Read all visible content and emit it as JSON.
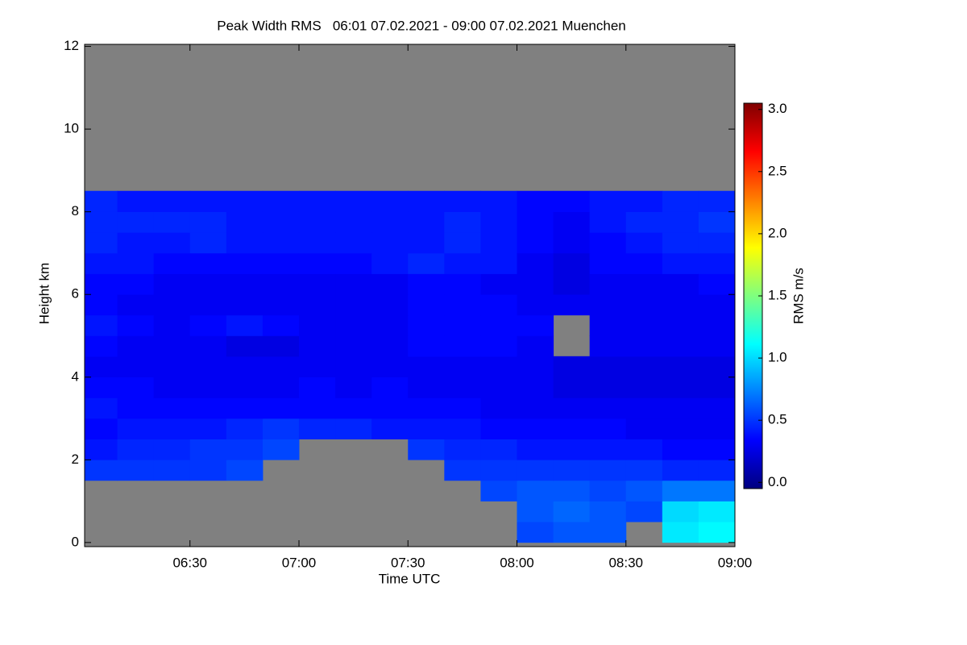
{
  "chart_data": {
    "type": "heatmap",
    "title": "Peak Width RMS   06:01 07.02.2021 - 09:00 07.02.2021 Muenchen",
    "x_label": "Time UTC",
    "y_label": "Height km",
    "colorbar_label": "RMS m/s",
    "xlim": [
      361,
      540
    ],
    "xticks": [
      {
        "value": 390,
        "label": "06:30"
      },
      {
        "value": 420,
        "label": "07:00"
      },
      {
        "value": 450,
        "label": "07:30"
      },
      {
        "value": 480,
        "label": "08:00"
      },
      {
        "value": 510,
        "label": "08:30"
      },
      {
        "value": 540,
        "label": "09:00"
      }
    ],
    "ylim": [
      -0.1,
      12.05
    ],
    "yticks": [
      0,
      2,
      4,
      6,
      8,
      10,
      12
    ],
    "clim": [
      -0.05,
      3.05
    ],
    "cticks": [
      {
        "value": 0,
        "label": "0.0"
      },
      {
        "value": 0.5,
        "label": "0.5"
      },
      {
        "value": 1,
        "label": "1.0"
      },
      {
        "value": 1.5,
        "label": "1.5"
      },
      {
        "value": 2,
        "label": "2.0"
      },
      {
        "value": 2.5,
        "label": "2.5"
      },
      {
        "value": 3,
        "label": "3.0"
      }
    ],
    "colormap": [
      "#00007f",
      "#0000ff",
      "#007fff",
      "#00ffff",
      "#7fff7f",
      "#ffff00",
      "#ff7f00",
      "#ff0000",
      "#7f0000"
    ],
    "missing_color": "#808080",
    "xbins": [
      361,
      370,
      380,
      390,
      400,
      410,
      420,
      430,
      440,
      450,
      460,
      470,
      480,
      490,
      500,
      510,
      520,
      530,
      540
    ],
    "ybins": [
      0,
      0.5,
      1,
      1.5,
      2,
      2.5,
      3,
      3.5,
      4,
      4.5,
      5,
      5.5,
      6,
      6.5,
      7,
      7.5,
      8,
      8.5,
      9
    ],
    "values": [
      [
        null,
        null,
        null,
        null,
        null,
        null,
        null,
        null,
        null,
        null,
        null,
        null,
        0.55,
        0.6,
        0.6,
        null,
        1.05,
        1.1
      ],
      [
        null,
        null,
        null,
        null,
        null,
        null,
        null,
        null,
        null,
        null,
        null,
        null,
        0.6,
        0.65,
        0.6,
        0.55,
        1.0,
        1.05
      ],
      [
        null,
        null,
        null,
        null,
        null,
        null,
        null,
        null,
        null,
        null,
        null,
        0.55,
        0.6,
        0.6,
        0.55,
        0.6,
        0.7,
        0.7
      ],
      [
        0.5,
        0.5,
        0.5,
        0.5,
        0.55,
        null,
        null,
        null,
        null,
        null,
        0.5,
        0.5,
        0.5,
        0.5,
        0.5,
        0.5,
        0.45,
        0.45
      ],
      [
        0.4,
        0.45,
        0.45,
        0.5,
        0.5,
        0.55,
        null,
        null,
        null,
        0.5,
        0.45,
        0.45,
        0.4,
        0.4,
        0.4,
        0.4,
        0.35,
        0.35
      ],
      [
        0.35,
        0.4,
        0.4,
        0.4,
        0.45,
        0.5,
        0.45,
        0.45,
        0.4,
        0.4,
        0.4,
        0.35,
        0.35,
        0.35,
        0.35,
        0.3,
        0.3,
        0.3
      ],
      [
        0.4,
        0.35,
        0.35,
        0.35,
        0.35,
        0.35,
        0.35,
        0.35,
        0.35,
        0.35,
        0.35,
        0.3,
        0.3,
        0.3,
        0.3,
        0.3,
        0.3,
        0.3
      ],
      [
        0.35,
        0.35,
        0.3,
        0.3,
        0.3,
        0.3,
        0.35,
        0.3,
        0.35,
        0.3,
        0.3,
        0.3,
        0.3,
        0.25,
        0.25,
        0.25,
        0.25,
        0.25
      ],
      [
        0.3,
        0.3,
        0.3,
        0.3,
        0.3,
        0.3,
        0.3,
        0.3,
        0.3,
        0.3,
        0.3,
        0.3,
        0.3,
        0.25,
        0.25,
        0.25,
        0.25,
        0.25
      ],
      [
        0.35,
        0.3,
        0.3,
        0.3,
        0.25,
        0.25,
        0.3,
        0.3,
        0.3,
        0.35,
        0.35,
        0.35,
        0.3,
        null,
        0.3,
        0.3,
        0.3,
        0.3
      ],
      [
        0.4,
        0.35,
        0.3,
        0.35,
        0.4,
        0.35,
        0.3,
        0.3,
        0.3,
        0.35,
        0.35,
        0.35,
        0.35,
        null,
        0.3,
        0.3,
        0.3,
        0.3
      ],
      [
        0.35,
        0.3,
        0.3,
        0.3,
        0.3,
        0.3,
        0.3,
        0.3,
        0.3,
        0.35,
        0.35,
        0.35,
        0.3,
        0.3,
        0.3,
        0.3,
        0.3,
        0.3
      ],
      [
        0.35,
        0.35,
        0.3,
        0.3,
        0.3,
        0.3,
        0.3,
        0.3,
        0.3,
        0.35,
        0.35,
        0.3,
        0.3,
        0.25,
        0.3,
        0.3,
        0.3,
        0.35
      ],
      [
        0.4,
        0.4,
        0.35,
        0.35,
        0.35,
        0.35,
        0.35,
        0.35,
        0.4,
        0.45,
        0.4,
        0.4,
        0.3,
        0.25,
        0.35,
        0.35,
        0.4,
        0.4
      ],
      [
        0.45,
        0.4,
        0.4,
        0.45,
        0.4,
        0.4,
        0.4,
        0.4,
        0.4,
        0.4,
        0.45,
        0.4,
        0.35,
        0.3,
        0.35,
        0.4,
        0.45,
        0.45
      ],
      [
        0.45,
        0.45,
        0.45,
        0.45,
        0.4,
        0.4,
        0.4,
        0.4,
        0.4,
        0.4,
        0.45,
        0.4,
        0.35,
        0.3,
        0.4,
        0.45,
        0.45,
        0.5
      ],
      [
        0.45,
        0.4,
        0.4,
        0.4,
        0.4,
        0.4,
        0.4,
        0.4,
        0.4,
        0.4,
        0.4,
        0.4,
        0.35,
        0.35,
        0.4,
        0.4,
        0.45,
        0.45
      ],
      [
        null,
        null,
        null,
        null,
        null,
        null,
        null,
        null,
        null,
        null,
        null,
        null,
        null,
        null,
        null,
        null,
        null,
        null
      ]
    ]
  }
}
